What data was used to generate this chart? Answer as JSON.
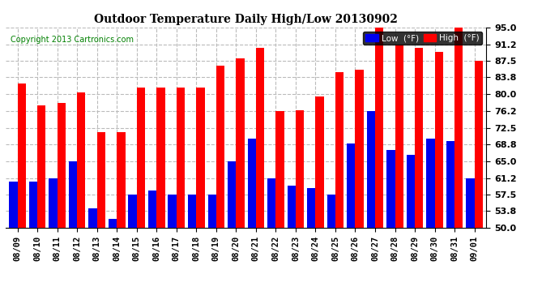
{
  "title": "Outdoor Temperature Daily High/Low 20130902",
  "copyright": "Copyright 2013 Cartronics.com",
  "dates": [
    "08/09",
    "08/10",
    "08/11",
    "08/12",
    "08/13",
    "08/14",
    "08/15",
    "08/16",
    "08/17",
    "08/18",
    "08/19",
    "08/20",
    "08/21",
    "08/22",
    "08/23",
    "08/24",
    "08/25",
    "08/26",
    "08/27",
    "08/28",
    "08/29",
    "08/30",
    "08/31",
    "09/01"
  ],
  "high": [
    82.5,
    77.5,
    78.0,
    80.5,
    71.5,
    71.5,
    81.5,
    81.5,
    81.5,
    81.5,
    86.5,
    88.0,
    90.5,
    76.2,
    76.5,
    79.5,
    85.0,
    85.5,
    95.0,
    91.2,
    90.5,
    89.5,
    95.0,
    87.5
  ],
  "low": [
    60.5,
    60.5,
    61.2,
    65.0,
    54.5,
    52.0,
    57.5,
    58.5,
    57.5,
    57.5,
    57.5,
    65.0,
    70.0,
    61.2,
    59.5,
    59.0,
    57.5,
    69.0,
    76.2,
    67.5,
    66.5,
    70.0,
    69.5,
    61.2
  ],
  "high_color": "#ff0000",
  "low_color": "#0000ee",
  "ylim_min": 50.0,
  "ylim_max": 95.0,
  "yticks": [
    50.0,
    53.8,
    57.5,
    61.2,
    65.0,
    68.8,
    72.5,
    76.2,
    80.0,
    83.8,
    87.5,
    91.2,
    95.0
  ],
  "bg_color": "#ffffff",
  "plot_bg_color": "#ffffff",
  "grid_color": "#bbbbbb",
  "bar_width": 0.42,
  "legend_low_label": "Low  (°F)",
  "legend_high_label": "High  (°F)"
}
